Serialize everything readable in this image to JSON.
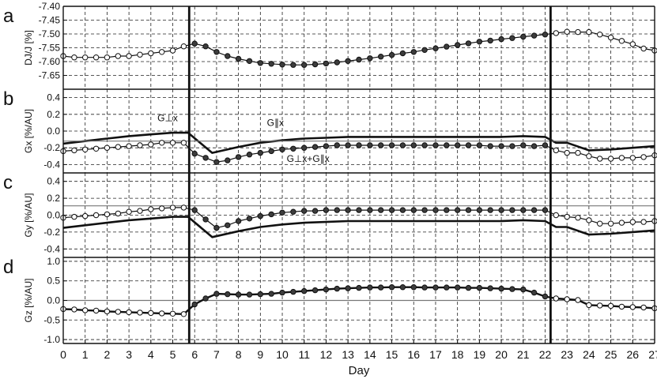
{
  "chart_data": {
    "type": "line",
    "xlabel": "Day",
    "xlim": [
      0,
      27
    ],
    "x_ticks": [
      0,
      1,
      2,
      3,
      4,
      5,
      6,
      7,
      8,
      9,
      10,
      11,
      12,
      13,
      14,
      15,
      16,
      17,
      18,
      19,
      20,
      21,
      22,
      23,
      24,
      25,
      26,
      27
    ],
    "vertical_markers": [
      5.75,
      22.25
    ],
    "panels": [
      {
        "letter": "a",
        "ylabel": "DJ/J [%]",
        "ylim": [
          -7.7,
          -7.4
        ],
        "y_ticks": [
          -7.65,
          -7.6,
          -7.55,
          -7.5,
          -7.45,
          -7.4
        ],
        "series": [
          {
            "style": "dot-line",
            "x": [
              0,
              0.5,
              1,
              1.5,
              2,
              2.5,
              3,
              3.5,
              4,
              4.5,
              5,
              5.5,
              6,
              6.5,
              7,
              7.5,
              8,
              8.5,
              9,
              9.5,
              10,
              10.5,
              11,
              11.5,
              12,
              12.5,
              13,
              13.5,
              14,
              14.5,
              15,
              15.5,
              16,
              16.5,
              17,
              17.5,
              18,
              18.5,
              19,
              19.5,
              20,
              20.5,
              21,
              21.5,
              22,
              22.5,
              23,
              23.5,
              24,
              24.5,
              25,
              25.5,
              26,
              26.5,
              27
            ],
            "y": [
              -7.58,
              -7.585,
              -7.585,
              -7.585,
              -7.585,
              -7.58,
              -7.58,
              -7.575,
              -7.57,
              -7.565,
              -7.56,
              -7.545,
              -7.535,
              -7.545,
              -7.565,
              -7.58,
              -7.59,
              -7.598,
              -7.605,
              -7.608,
              -7.611,
              -7.612,
              -7.612,
              -7.61,
              -7.607,
              -7.603,
              -7.598,
              -7.593,
              -7.588,
              -7.582,
              -7.576,
              -7.57,
              -7.565,
              -7.558,
              -7.552,
              -7.546,
              -7.54,
              -7.534,
              -7.528,
              -7.524,
              -7.519,
              -7.515,
              -7.51,
              -7.506,
              -7.502,
              -7.497,
              -7.492,
              -7.493,
              -7.493,
              -7.502,
              -7.513,
              -7.525,
              -7.537,
              -7.553,
              -7.56
            ],
            "filled_range": [
              6,
              22
            ]
          }
        ]
      },
      {
        "letter": "b",
        "ylabel": "Gx [%/AU]",
        "ylim": [
          -0.5,
          0.5
        ],
        "y_ticks": [
          -0.4,
          -0.2,
          0.0,
          0.2,
          0.4
        ],
        "series": [
          {
            "name": "G⊥x",
            "style": "thick",
            "x": [
              0,
              1,
              2,
              3,
              4,
              5,
              5.7,
              6.8,
              8,
              9,
              10,
              11,
              12,
              13,
              14,
              15,
              16,
              17,
              18,
              19,
              20,
              21,
              22,
              22.5,
              23,
              24,
              25,
              26,
              27
            ],
            "y": [
              -0.15,
              -0.12,
              -0.09,
              -0.06,
              -0.04,
              -0.02,
              -0.02,
              -0.26,
              -0.19,
              -0.14,
              -0.11,
              -0.09,
              -0.08,
              -0.07,
              -0.07,
              -0.07,
              -0.07,
              -0.07,
              -0.07,
              -0.07,
              -0.07,
              -0.06,
              -0.07,
              -0.14,
              -0.14,
              -0.23,
              -0.22,
              -0.2,
              -0.18
            ]
          },
          {
            "name": "G∥x",
            "style": "thin",
            "x": [
              0,
              27
            ],
            "y": [
              -0.12,
              -0.12
            ]
          },
          {
            "name": "G⊥x+G∥x",
            "style": "dot-line",
            "x": [
              0,
              0.5,
              1,
              1.5,
              2,
              2.5,
              3,
              3.5,
              4,
              4.5,
              5,
              5.5,
              6,
              6.5,
              7,
              7.5,
              8,
              8.5,
              9,
              9.5,
              10,
              10.5,
              11,
              11.5,
              12,
              12.5,
              13,
              13.5,
              14,
              14.5,
              15,
              15.5,
              16,
              16.5,
              17,
              17.5,
              18,
              18.5,
              19,
              19.5,
              20,
              20.5,
              21,
              21.5,
              22,
              22.5,
              23,
              23.5,
              24,
              24.5,
              25,
              25.5,
              26,
              26.5,
              27
            ],
            "y": [
              -0.24,
              -0.23,
              -0.22,
              -0.21,
              -0.2,
              -0.19,
              -0.18,
              -0.17,
              -0.16,
              -0.14,
              -0.14,
              -0.14,
              -0.27,
              -0.32,
              -0.37,
              -0.35,
              -0.31,
              -0.28,
              -0.26,
              -0.24,
              -0.22,
              -0.21,
              -0.2,
              -0.19,
              -0.18,
              -0.17,
              -0.17,
              -0.17,
              -0.17,
              -0.17,
              -0.17,
              -0.17,
              -0.17,
              -0.17,
              -0.17,
              -0.17,
              -0.17,
              -0.17,
              -0.17,
              -0.18,
              -0.18,
              -0.18,
              -0.17,
              -0.18,
              -0.17,
              -0.23,
              -0.26,
              -0.26,
              -0.3,
              -0.33,
              -0.33,
              -0.32,
              -0.32,
              -0.31,
              -0.29
            ],
            "filled_range": [
              6,
              22
            ]
          }
        ],
        "annotations": [
          {
            "text": "G⊥x",
            "x": 4.3,
            "y": 0.12
          },
          {
            "text": "G∥x",
            "x": 9.3,
            "y": 0.06
          },
          {
            "text": "G⊥x+G∥x",
            "x": 10.2,
            "y": -0.37
          }
        ]
      },
      {
        "letter": "c",
        "ylabel": "Gy [%/AU]",
        "ylim": [
          -0.5,
          0.5
        ],
        "y_ticks": [
          -0.4,
          -0.2,
          0.0,
          0.2,
          0.4
        ],
        "series": [
          {
            "style": "thick",
            "x": [
              0,
              1,
              2,
              3,
              4,
              5,
              5.7,
              6.8,
              8,
              9,
              10,
              11,
              12,
              13,
              14,
              15,
              16,
              17,
              18,
              19,
              20,
              21,
              22,
              22.5,
              23,
              24,
              25,
              26,
              27
            ],
            "y": [
              -0.15,
              -0.12,
              -0.09,
              -0.06,
              -0.04,
              -0.02,
              -0.02,
              -0.26,
              -0.19,
              -0.14,
              -0.11,
              -0.09,
              -0.08,
              -0.07,
              -0.07,
              -0.07,
              -0.07,
              -0.07,
              -0.07,
              -0.07,
              -0.07,
              -0.06,
              -0.07,
              -0.14,
              -0.14,
              -0.23,
              -0.22,
              -0.2,
              -0.18
            ]
          },
          {
            "style": "thin",
            "x": [
              0,
              27
            ],
            "y": [
              0.11,
              0.11
            ]
          },
          {
            "style": "dot-line",
            "x": [
              0,
              0.5,
              1,
              1.5,
              2,
              2.5,
              3,
              3.5,
              4,
              4.5,
              5,
              5.5,
              6,
              6.5,
              7,
              7.5,
              8,
              8.5,
              9,
              9.5,
              10,
              10.5,
              11,
              11.5,
              12,
              12.5,
              13,
              13.5,
              14,
              14.5,
              15,
              15.5,
              16,
              16.5,
              17,
              17.5,
              18,
              18.5,
              19,
              19.5,
              20,
              20.5,
              21,
              21.5,
              22,
              22.5,
              23,
              23.5,
              24,
              24.5,
              25,
              25.5,
              26,
              26.5,
              27
            ],
            "y": [
              -0.03,
              -0.02,
              -0.01,
              0.0,
              0.01,
              0.02,
              0.04,
              0.05,
              0.07,
              0.08,
              0.09,
              0.09,
              0.06,
              -0.05,
              -0.15,
              -0.12,
              -0.07,
              -0.04,
              -0.01,
              0.01,
              0.03,
              0.04,
              0.05,
              0.05,
              0.06,
              0.06,
              0.06,
              0.06,
              0.06,
              0.06,
              0.06,
              0.06,
              0.06,
              0.06,
              0.06,
              0.06,
              0.06,
              0.06,
              0.06,
              0.06,
              0.06,
              0.06,
              0.06,
              0.06,
              0.06,
              0.0,
              -0.02,
              -0.03,
              -0.06,
              -0.1,
              -0.1,
              -0.09,
              -0.08,
              -0.08,
              -0.07
            ],
            "filled_range": [
              6,
              22
            ]
          }
        ]
      },
      {
        "letter": "d",
        "ylabel": "Gz [%/AU]",
        "ylim": [
          -1.1,
          1.1
        ],
        "y_ticks": [
          -1.0,
          -0.5,
          0.0,
          0.5,
          1.0
        ],
        "series": [
          {
            "style": "thin",
            "x": [
              0,
              27
            ],
            "y": [
              0.0,
              0.0
            ]
          },
          {
            "style": "dot-line-thick",
            "x": [
              0,
              0.5,
              1,
              1.5,
              2,
              2.5,
              3,
              3.5,
              4,
              4.5,
              5,
              5.5,
              6,
              6.5,
              7,
              7.5,
              8,
              8.5,
              9,
              9.5,
              10,
              10.5,
              11,
              11.5,
              12,
              12.5,
              13,
              13.5,
              14,
              14.5,
              15,
              15.5,
              16,
              16.5,
              17,
              17.5,
              18,
              18.5,
              19,
              19.5,
              20,
              20.5,
              21,
              21.5,
              22,
              22.5,
              23,
              23.5,
              24,
              24.5,
              25,
              25.5,
              26,
              26.5,
              27
            ],
            "y": [
              -0.22,
              -0.23,
              -0.25,
              -0.26,
              -0.28,
              -0.29,
              -0.3,
              -0.31,
              -0.32,
              -0.33,
              -0.34,
              -0.35,
              -0.1,
              0.05,
              0.17,
              0.16,
              0.15,
              0.15,
              0.16,
              0.17,
              0.2,
              0.22,
              0.24,
              0.26,
              0.28,
              0.3,
              0.31,
              0.32,
              0.33,
              0.33,
              0.34,
              0.34,
              0.34,
              0.33,
              0.33,
              0.33,
              0.33,
              0.32,
              0.32,
              0.31,
              0.3,
              0.29,
              0.28,
              0.2,
              0.1,
              0.05,
              0.03,
              0.01,
              -0.12,
              -0.13,
              -0.14,
              -0.16,
              -0.17,
              -0.18,
              -0.2
            ],
            "filled_range": [
              6,
              22
            ]
          }
        ]
      }
    ]
  }
}
